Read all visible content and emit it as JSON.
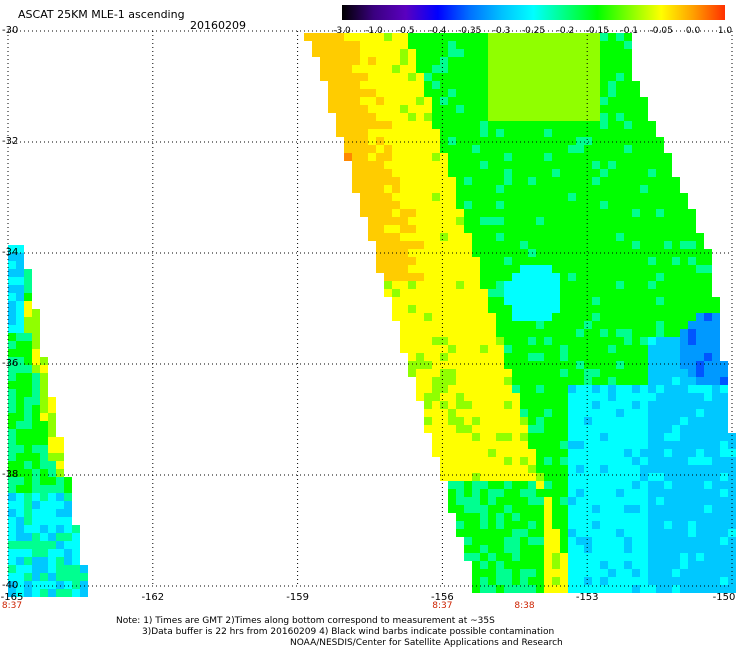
{
  "header": {
    "title": "ASCAT 25KM MLE-1 ascending",
    "date": "20160209"
  },
  "colorbar": {
    "labels": [
      "-3.0",
      "-1.0",
      "-0.5",
      "-0.4",
      "-0.35",
      "-0.3",
      "-0.25",
      "-0.2",
      "-0.15",
      "-0.1",
      "-0.05",
      "0.0",
      "1.0"
    ],
    "colors": [
      "#000000",
      "#3a0080",
      "#5a00c0",
      "#0000ff",
      "#0070ff",
      "#00c0ff",
      "#00ffff",
      "#00ff80",
      "#00ff00",
      "#80ff00",
      "#ffff00",
      "#ffa000",
      "#ff3000"
    ]
  },
  "axes": {
    "y_labels": [
      "-30",
      "-32",
      "-34",
      "-36",
      "-38",
      "-40"
    ],
    "x_labels": [
      "-165",
      "-162",
      "-159",
      "-156",
      "-153",
      "-150"
    ],
    "time_labels": [
      {
        "label": "8:37",
        "lon": -165
      },
      {
        "label": "8:37",
        "lon": -156
      },
      {
        "label": "8:38",
        "lon": -154.3
      }
    ],
    "lat_range": [
      -40,
      -30
    ],
    "lon_range": [
      -165,
      -150
    ],
    "grid": "dotted"
  },
  "notes": {
    "line1": "Note: 1) Times are GMT 2)Times along bottom correspond to measurement at ~35S",
    "line2": "3)Data buffer is 22 hrs from 20160209 4) Black wind barbs indicate possible contamination",
    "line3": "NOAA/NESDIS/Center for Satellite Applications and Research"
  }
}
